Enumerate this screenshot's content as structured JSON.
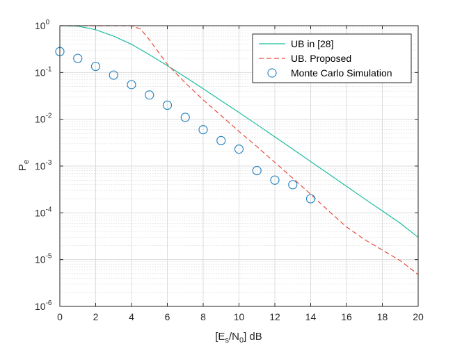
{
  "chart_data": {
    "type": "line",
    "title": "",
    "xlabel": {
      "main": "[E",
      "sub1": "s",
      "mid": "/N",
      "sub2": "0",
      "end": "] dB"
    },
    "ylabel": {
      "main": "P",
      "sub": "e"
    },
    "xlim": [
      0,
      20
    ],
    "ylim_log10": [
      -6,
      0
    ],
    "yscale": "log",
    "grid": true,
    "x_ticks": [
      0,
      2,
      4,
      6,
      8,
      10,
      12,
      14,
      16,
      18,
      20
    ],
    "y_tick_exponents": [
      -6,
      -5,
      -4,
      -3,
      -2,
      -1,
      0
    ],
    "y_tick_base": "10",
    "legend_position": "top-right",
    "series": [
      {
        "name": "UB in [28]",
        "style": "solid",
        "color": "#1abc9c",
        "x": [
          0,
          1,
          2,
          3,
          4,
          5,
          6,
          7,
          8,
          9,
          10,
          11,
          12,
          13,
          14,
          15,
          16,
          17,
          18,
          19,
          20
        ],
        "y": [
          1.0,
          0.98,
          0.82,
          0.6,
          0.4,
          0.24,
          0.14,
          0.08,
          0.045,
          0.025,
          0.014,
          0.0077,
          0.0042,
          0.0023,
          0.00125,
          0.00068,
          0.00037,
          0.0002,
          0.00011,
          6e-05,
          3e-05
        ]
      },
      {
        "name": "UB. Proposed",
        "style": "dashed",
        "color": "#e74c3c",
        "x": [
          0,
          1,
          2,
          3,
          4,
          4.5,
          5,
          6,
          7,
          8,
          9,
          10,
          11,
          12,
          13,
          14,
          15,
          16,
          17,
          18,
          19,
          20
        ],
        "y": [
          1.0,
          1.0,
          1.0,
          1.0,
          1.0,
          0.85,
          0.5,
          0.15,
          0.06,
          0.026,
          0.012,
          0.0055,
          0.0026,
          0.0012,
          0.00055,
          0.00025,
          0.00011,
          5e-05,
          2.7e-05,
          1.6e-05,
          9.5e-06,
          4.8e-06
        ]
      },
      {
        "name": "Monte Carlo Simulation",
        "style": "marker-circle",
        "color": "#2e86c1",
        "x": [
          0,
          1,
          2,
          3,
          4,
          5,
          6,
          7,
          8,
          9,
          10,
          11,
          12,
          13,
          14
        ],
        "y": [
          0.28,
          0.2,
          0.135,
          0.088,
          0.055,
          0.033,
          0.02,
          0.011,
          0.006,
          0.0035,
          0.0023,
          0.0008,
          0.0005,
          0.0004,
          0.0002
        ]
      }
    ]
  }
}
